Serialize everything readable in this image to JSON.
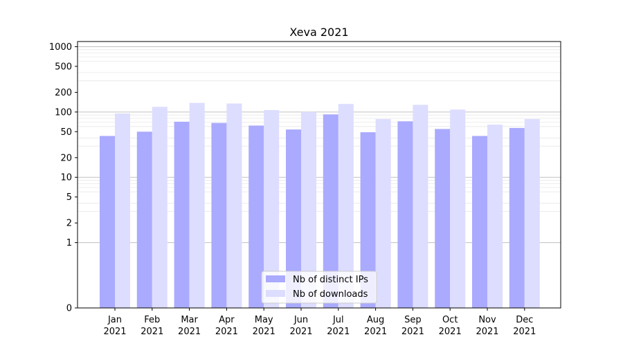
{
  "chart_data": {
    "type": "bar",
    "title": "Xeva 2021",
    "xlabel": "",
    "ylabel": "",
    "yscale": "symlog",
    "ylim": [
      0,
      1200
    ],
    "yticks": [
      0,
      1,
      2,
      5,
      10,
      20,
      50,
      100,
      200,
      500,
      1000
    ],
    "categories": [
      [
        "Jan",
        "2021"
      ],
      [
        "Feb",
        "2021"
      ],
      [
        "Mar",
        "2021"
      ],
      [
        "Apr",
        "2021"
      ],
      [
        "May",
        "2021"
      ],
      [
        "Jun",
        "2021"
      ],
      [
        "Jul",
        "2021"
      ],
      [
        "Aug",
        "2021"
      ],
      [
        "Sep",
        "2021"
      ],
      [
        "Oct",
        "2021"
      ],
      [
        "Nov",
        "2021"
      ],
      [
        "Dec",
        "2021"
      ]
    ],
    "series": [
      {
        "name": "Nb of distinct IPs",
        "color": "#aaaaff",
        "values": [
          43,
          50,
          71,
          68,
          62,
          54,
          92,
          49,
          72,
          55,
          43,
          57
        ]
      },
      {
        "name": "Nb of downloads",
        "color": "#ddddff",
        "values": [
          95,
          120,
          138,
          135,
          107,
          100,
          133,
          78,
          129,
          109,
          64,
          78
        ]
      }
    ],
    "grid": true,
    "legend_position": "bottom-center"
  }
}
